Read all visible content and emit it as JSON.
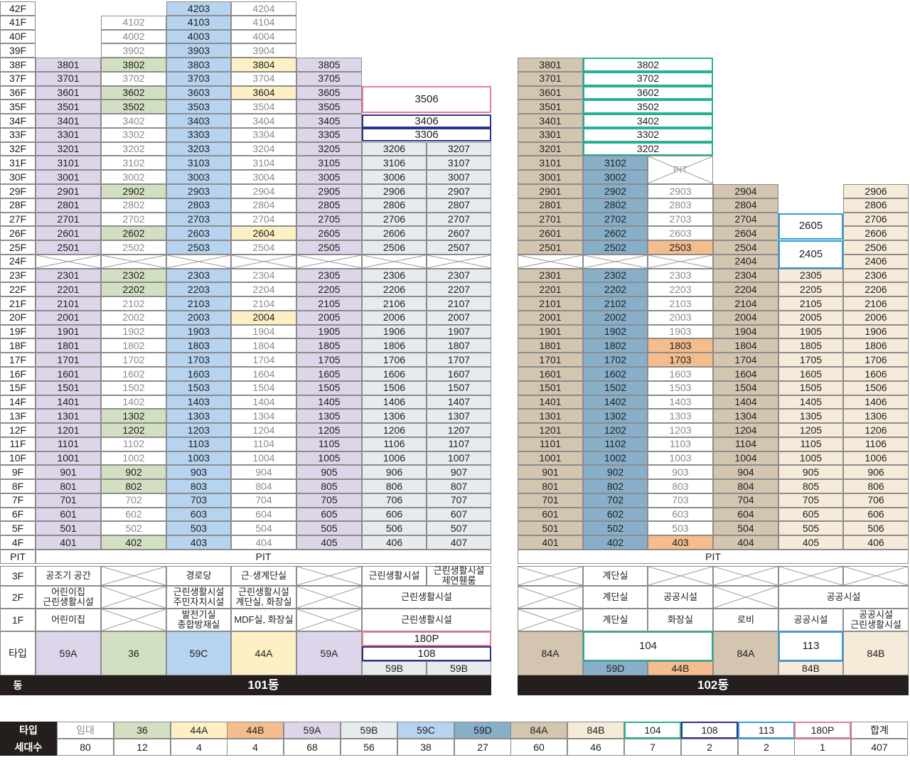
{
  "colors": {
    "t59A": "#ddd5ea",
    "t36": "#d3dfc2",
    "t59C": "#b6d3f0",
    "t44A": "#fdf0c4",
    "t59B": "#e6ebef",
    "t84A": "#d4c5b0",
    "t59D": "#88afca",
    "t44B": "#f5bd8e",
    "t84B": "#f6ead9",
    "rental_text": "#8a8a8a",
    "o104": "#27b093",
    "o108": "#2e3385",
    "o113": "#2f9fdd",
    "o180P": "#e77d90",
    "dark": "#241e1c"
  },
  "floors": [
    "42F",
    "41F",
    "40F",
    "39F",
    "38F",
    "37F",
    "36F",
    "35F",
    "34F",
    "33F",
    "32F",
    "31F",
    "30F",
    "29F",
    "28F",
    "27F",
    "26F",
    "25F",
    "24F",
    "23F",
    "22F",
    "21F",
    "20F",
    "19F",
    "18F",
    "17F",
    "16F",
    "15F",
    "14F",
    "13F",
    "12F",
    "11F",
    "10F",
    "9F",
    "8F",
    "7F",
    "6F",
    "5F",
    "4F",
    "PIT",
    "3F",
    "2F",
    "1F"
  ],
  "b101": {
    "pit": "PIT",
    "facilities": {
      "3F": [
        "공조기 공간",
        "",
        "경로당",
        "근·생계단실",
        "",
        "근린생활시설",
        "근린생활시설\n제연휀룸"
      ],
      "2F": [
        "어린이집\n근린생활시설",
        "",
        "근린생활시설\n주민자치시설",
        "근린생활시설\n계단실, 화장실",
        "",
        "근린생활시설"
      ],
      "1F": [
        "어린이집",
        "",
        "발전기실\n종합방재실",
        "MDF실, 화장실",
        "",
        "근린생활시설"
      ]
    },
    "type_label": "타입",
    "types": [
      "59A",
      "36",
      "59C",
      "44A",
      "59A",
      "59B",
      "59B"
    ],
    "outline_180p": "180P",
    "outline_108": "108",
    "unit_3506": "3506",
    "unit_3406": "3406",
    "unit_3306": "3306",
    "name_label": "동",
    "name": "101동"
  },
  "b102": {
    "pit": "PIT",
    "facilities": {
      "3F": [
        "",
        "계단실",
        "",
        "",
        "",
        ""
      ],
      "2F": [
        "",
        "계단실",
        "공공시설",
        "",
        "공공시설"
      ],
      "1F": [
        "",
        "계단실",
        "화장실",
        "로비",
        "공공시설",
        "공공시설\n근린생활시설"
      ]
    },
    "pit_label": "PIT",
    "types": [
      "84A",
      "59D",
      "44B",
      "84A",
      "84B",
      "84B"
    ],
    "outline_104": "104",
    "outline_113": "113",
    "unit_2605": "2605",
    "unit_2405": "2405",
    "name": "102동"
  },
  "summary": {
    "header_type": "타입",
    "header_count": "세대수",
    "items": [
      {
        "type": "임대",
        "count": "80"
      },
      {
        "type": "36",
        "count": "12"
      },
      {
        "type": "44A",
        "count": "4"
      },
      {
        "type": "44B",
        "count": "4"
      },
      {
        "type": "59A",
        "count": "68"
      },
      {
        "type": "59B",
        "count": "56"
      },
      {
        "type": "59C",
        "count": "38"
      },
      {
        "type": "59D",
        "count": "27"
      },
      {
        "type": "84A",
        "count": "60"
      },
      {
        "type": "84B",
        "count": "46"
      },
      {
        "type": "104",
        "count": "7"
      },
      {
        "type": "108",
        "count": "2"
      },
      {
        "type": "113",
        "count": "2"
      },
      {
        "type": "180P",
        "count": "1"
      },
      {
        "type": "합계",
        "count": "407"
      }
    ]
  }
}
